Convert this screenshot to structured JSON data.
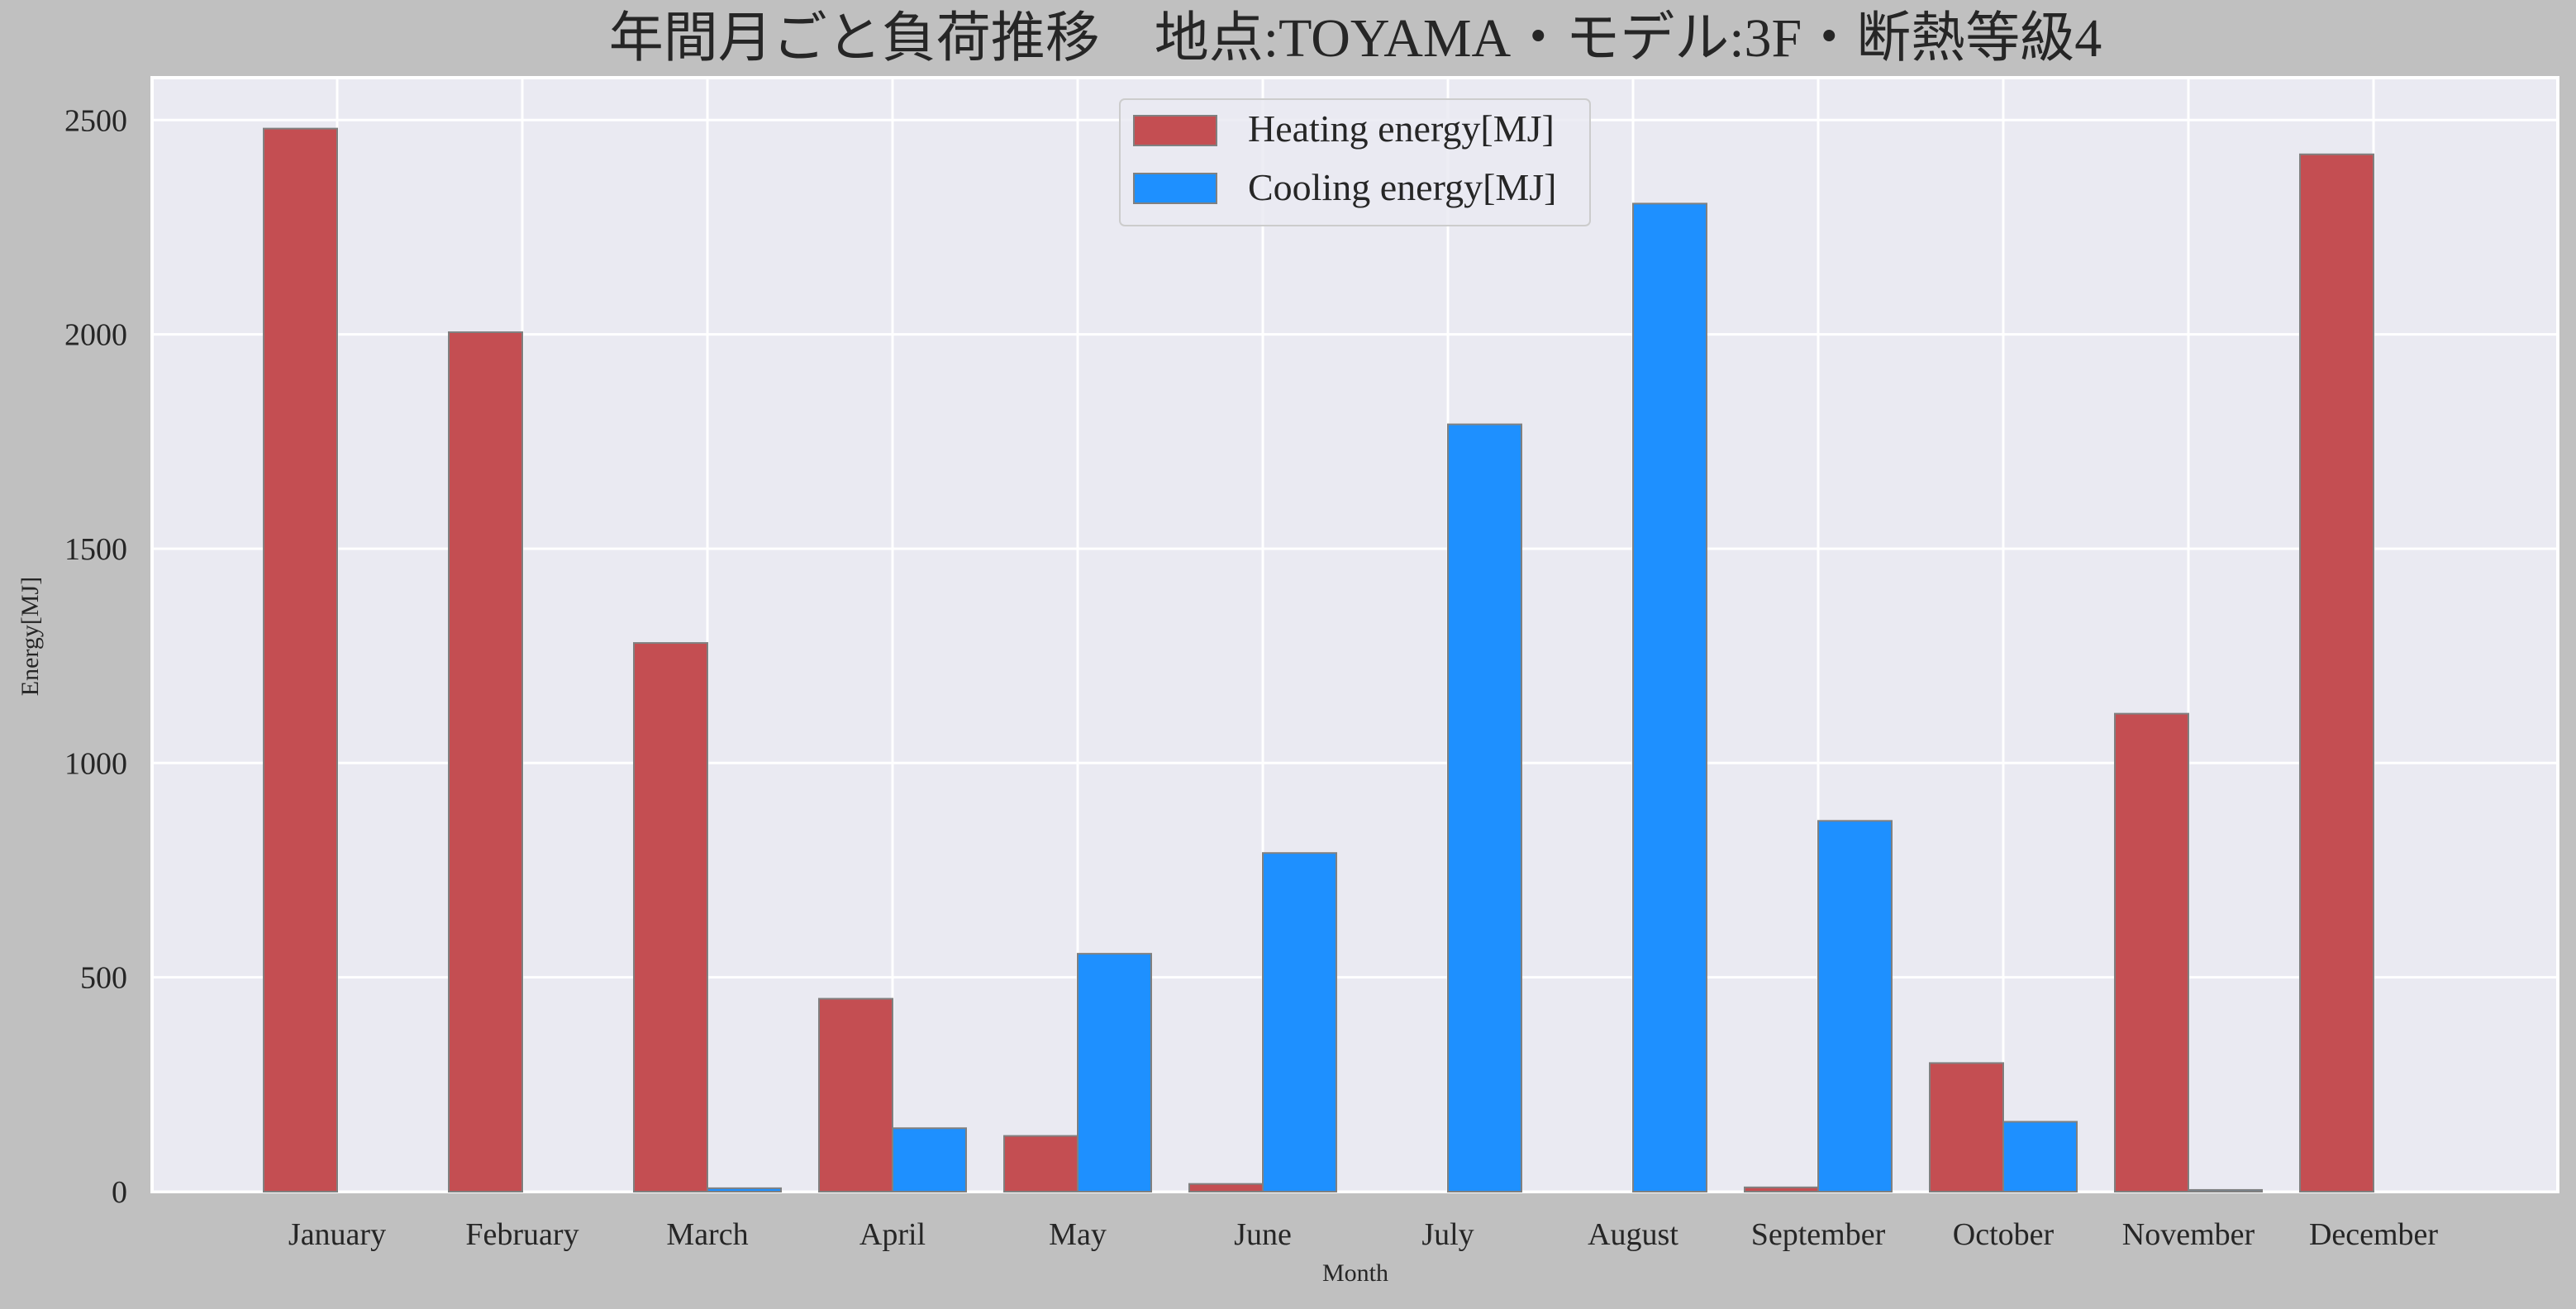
{
  "chart_data": {
    "type": "bar",
    "title": "年間月ごと負荷推移　地点:TOYAMA・モデル:3F・断熱等級4",
    "xlabel": "Month",
    "ylabel": "Energy[MJ]",
    "ylim": [
      0,
      2600
    ],
    "yticks": [
      0,
      500,
      1000,
      1500,
      2000,
      2500
    ],
    "grid": true,
    "legend_position": "top-center",
    "categories": [
      "January",
      "February",
      "March",
      "April",
      "May",
      "June",
      "July",
      "August",
      "September",
      "October",
      "November",
      "December"
    ],
    "series": [
      {
        "name": "Heating energy[MJ]",
        "color": "#c44e52",
        "values": [
          2480,
          2005,
          1280,
          450,
          130,
          18,
          0,
          0,
          10,
          300,
          1115,
          2420
        ]
      },
      {
        "name": "Cooling energy[MJ]",
        "color": "#1e90ff",
        "values": [
          0,
          0,
          8,
          148,
          555,
          790,
          1790,
          2305,
          865,
          163,
          4,
          0
        ]
      }
    ]
  },
  "colors": {
    "figure_background": "#c0c0c0",
    "plot_background": "#eaeaf2",
    "grid": "#ffffff",
    "bar_edge": "#808080",
    "text": "#262626"
  }
}
